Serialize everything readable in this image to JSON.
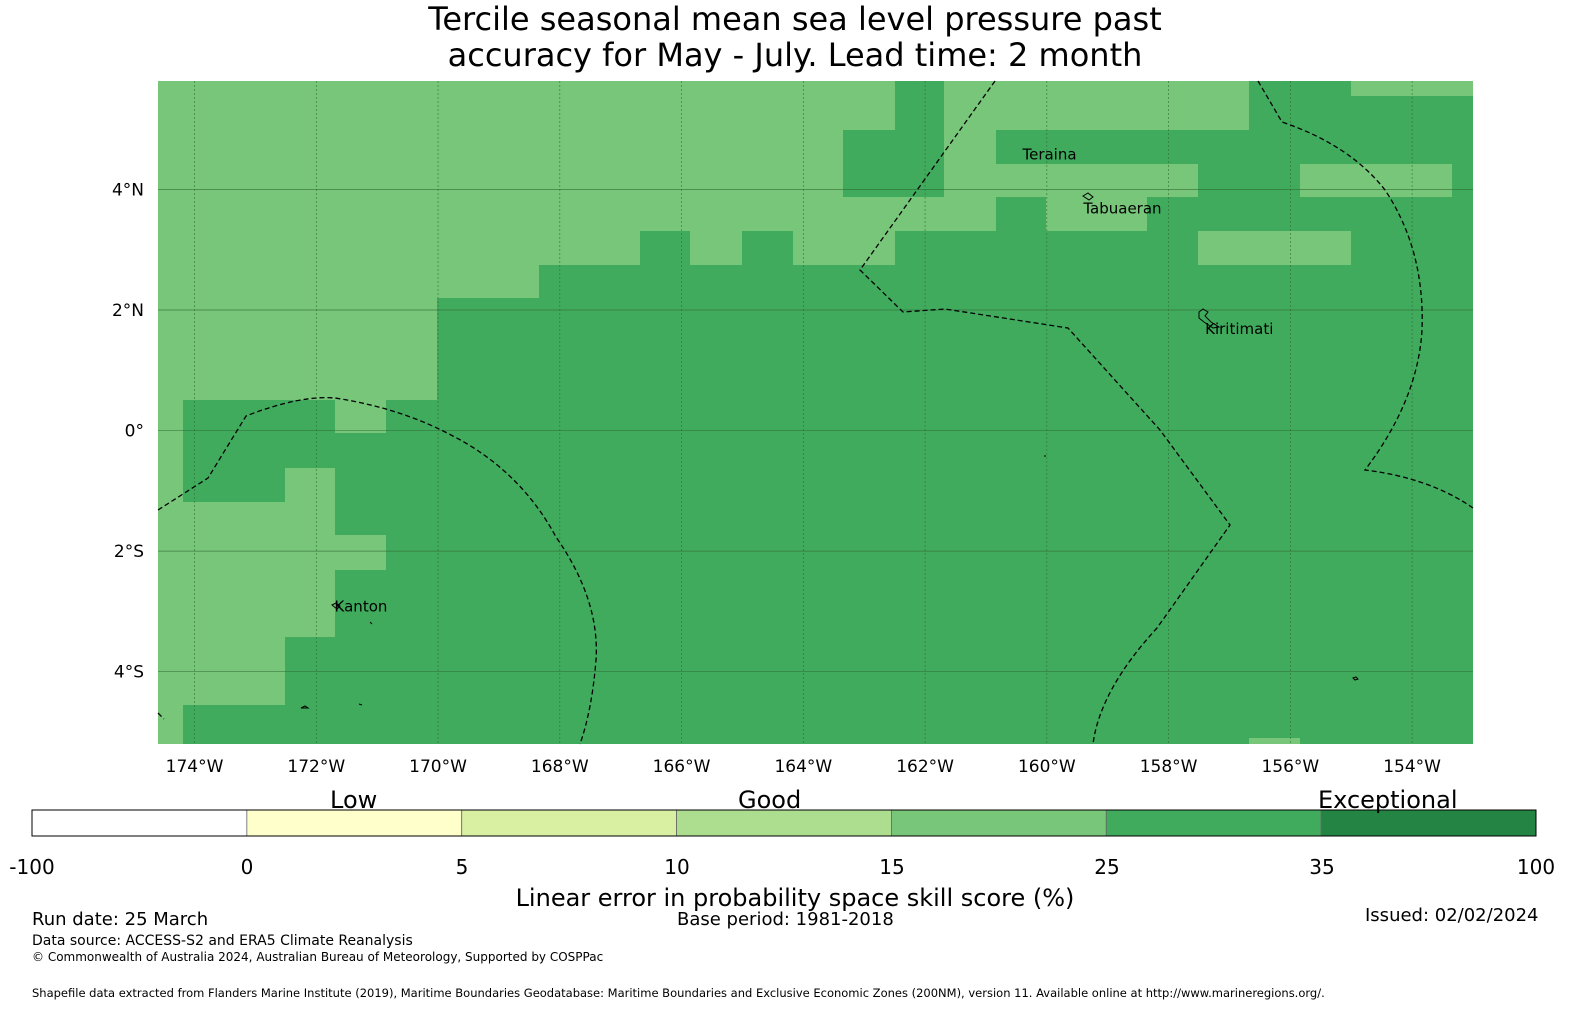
{
  "title": {
    "line1": "Tercile seasonal mean sea level pressure past",
    "line2": "accuracy for May - July. Lead time: 2 month"
  },
  "map": {
    "lon_range": [
      -174.6,
      -153.0
    ],
    "lat_range": [
      -5.2,
      5.8
    ],
    "x_ticks": [
      {
        "value": -174,
        "label": "174°W"
      },
      {
        "value": -172,
        "label": "172°W"
      },
      {
        "value": -170,
        "label": "170°W"
      },
      {
        "value": -168,
        "label": "168°W"
      },
      {
        "value": -166,
        "label": "166°W"
      },
      {
        "value": -164,
        "label": "164°W"
      },
      {
        "value": -162,
        "label": "162°W"
      },
      {
        "value": -160,
        "label": "160°W"
      },
      {
        "value": -158,
        "label": "158°W"
      },
      {
        "value": -156,
        "label": "156°W"
      },
      {
        "value": -154,
        "label": "154°W"
      }
    ],
    "y_ticks": [
      {
        "value": 4,
        "label": "4°N"
      },
      {
        "value": 2,
        "label": "2°N"
      },
      {
        "value": 0,
        "label": "0°"
      },
      {
        "value": -2,
        "label": "2°S"
      },
      {
        "value": -4,
        "label": "4°S"
      }
    ],
    "places": [
      {
        "name": "Teraina",
        "lon": -160.4,
        "lat": 4.5
      },
      {
        "name": "Tabuaeran",
        "lon": -159.4,
        "lat": 3.6
      },
      {
        "name": "Kiritimati",
        "lon": -157.4,
        "lat": 1.6
      },
      {
        "name": "Kanton",
        "lon": -171.7,
        "lat": -3.0
      }
    ],
    "category_colors": {
      "skill_15_25": "#78c679",
      "skill_25_35": "#41ab5d"
    },
    "grid_lines": true
  },
  "colorbar": {
    "categories": [
      "Low",
      "Good",
      "Exceptional"
    ],
    "ticks": [
      "-100",
      "0",
      "5",
      "10",
      "15",
      "25",
      "35",
      "100"
    ],
    "colors": [
      "#ffffff",
      "#ffffcc",
      "#d9f0a3",
      "#addd8e",
      "#78c679",
      "#41ab5d",
      "#238443"
    ],
    "label": "Linear error in probability space skill score (%)"
  },
  "footer": {
    "run_date": "Run date: 25 March",
    "base_period": "Base period: 1981-2018",
    "issued": "Issued: 02/02/2024",
    "data_source": "Data source: ACCESS-S2 and ERA5 Climate Reanalysis",
    "copyright": "© Commonwealth of Australia 2024, Australian Bureau of Meteorology, Supported by COSPPac",
    "shapefile": "Shapefile data extracted from Flanders Marine Institute (2019), Maritime Boundaries Geodatabase: Maritime Boundaries and Exclusive Economic Zones (200NM), version 11. Available online at http://www.marineregions.org/."
  }
}
